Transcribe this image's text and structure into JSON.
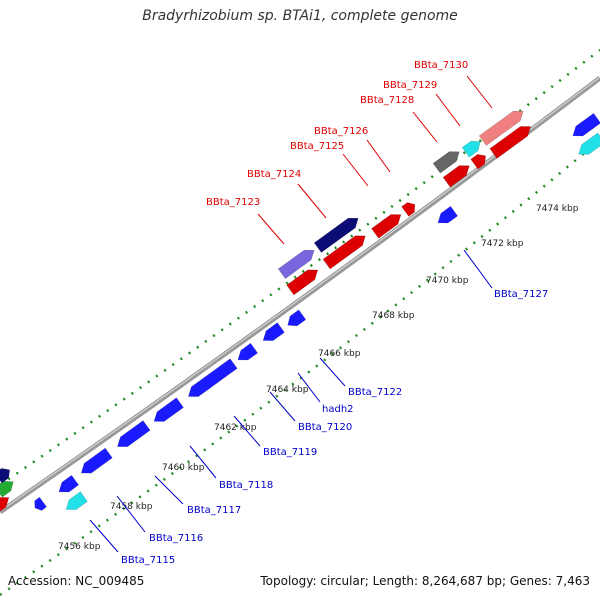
{
  "title": "Bradyrhizobium sp. BTAi1, complete genome",
  "footer": {
    "accession": "Accession: NC_009485",
    "summary": "Topology: circular; Length: 8,264,687 bp; Genes: 7,463"
  },
  "colors": {
    "backbone": "#888888",
    "forward_label": "#e00000",
    "reverse_label": "#0000cc",
    "tick": "#228b22"
  },
  "kbp_labels": [
    "7456 kbp",
    "7458 kbp",
    "7460 kbp",
    "7462 kbp",
    "7464 kbp",
    "7466 kbp",
    "7468 kbp",
    "7470 kbp",
    "7472 kbp",
    "7474 kbp"
  ],
  "gene_labels": {
    "reverse": [
      "BBta_7115",
      "BBta_7116",
      "BBta_7117",
      "BBta_7118",
      "BBta_7119",
      "BBta_7120",
      "hadh2",
      "BBta_7122",
      "BBta_7127"
    ],
    "forward": [
      "BBta_7123",
      "BBta_7124",
      "BBta_7125",
      "BBta_7126",
      "BBta_7128",
      "BBta_7129",
      "BBta_7130"
    ]
  }
}
